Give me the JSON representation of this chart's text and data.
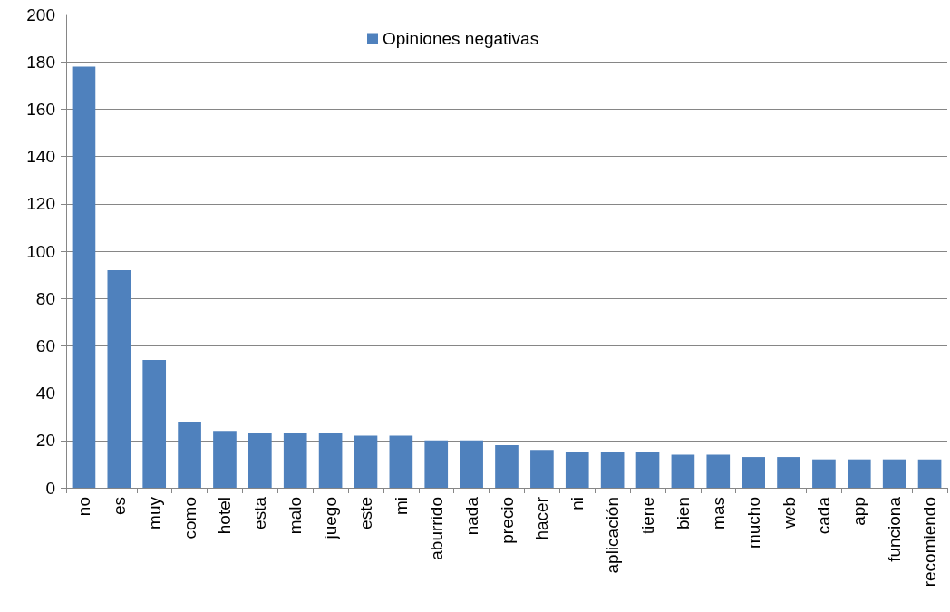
{
  "chart_data": {
    "type": "bar",
    "categories": [
      "no",
      "es",
      "muy",
      "como",
      "hotel",
      "esta",
      "malo",
      "juego",
      "este",
      "mi",
      "aburrido",
      "nada",
      "precio",
      "hacer",
      "ni",
      "aplicación",
      "tiene",
      "bien",
      "mas",
      "mucho",
      "web",
      "cada",
      "app",
      "funciona",
      "recomiendo"
    ],
    "series": [
      {
        "name": "Opiniones negativas",
        "color": "#4f81bd",
        "values": [
          178,
          92,
          54,
          28,
          24,
          23,
          23,
          23,
          22,
          22,
          20,
          20,
          18,
          16,
          15,
          15,
          15,
          14,
          14,
          13,
          13,
          12,
          12,
          12,
          12
        ]
      }
    ],
    "ylim": [
      0,
      200
    ],
    "yticks": [
      0,
      20,
      40,
      60,
      80,
      100,
      120,
      140,
      160,
      180,
      200
    ],
    "grid": "y",
    "legend": "top"
  }
}
